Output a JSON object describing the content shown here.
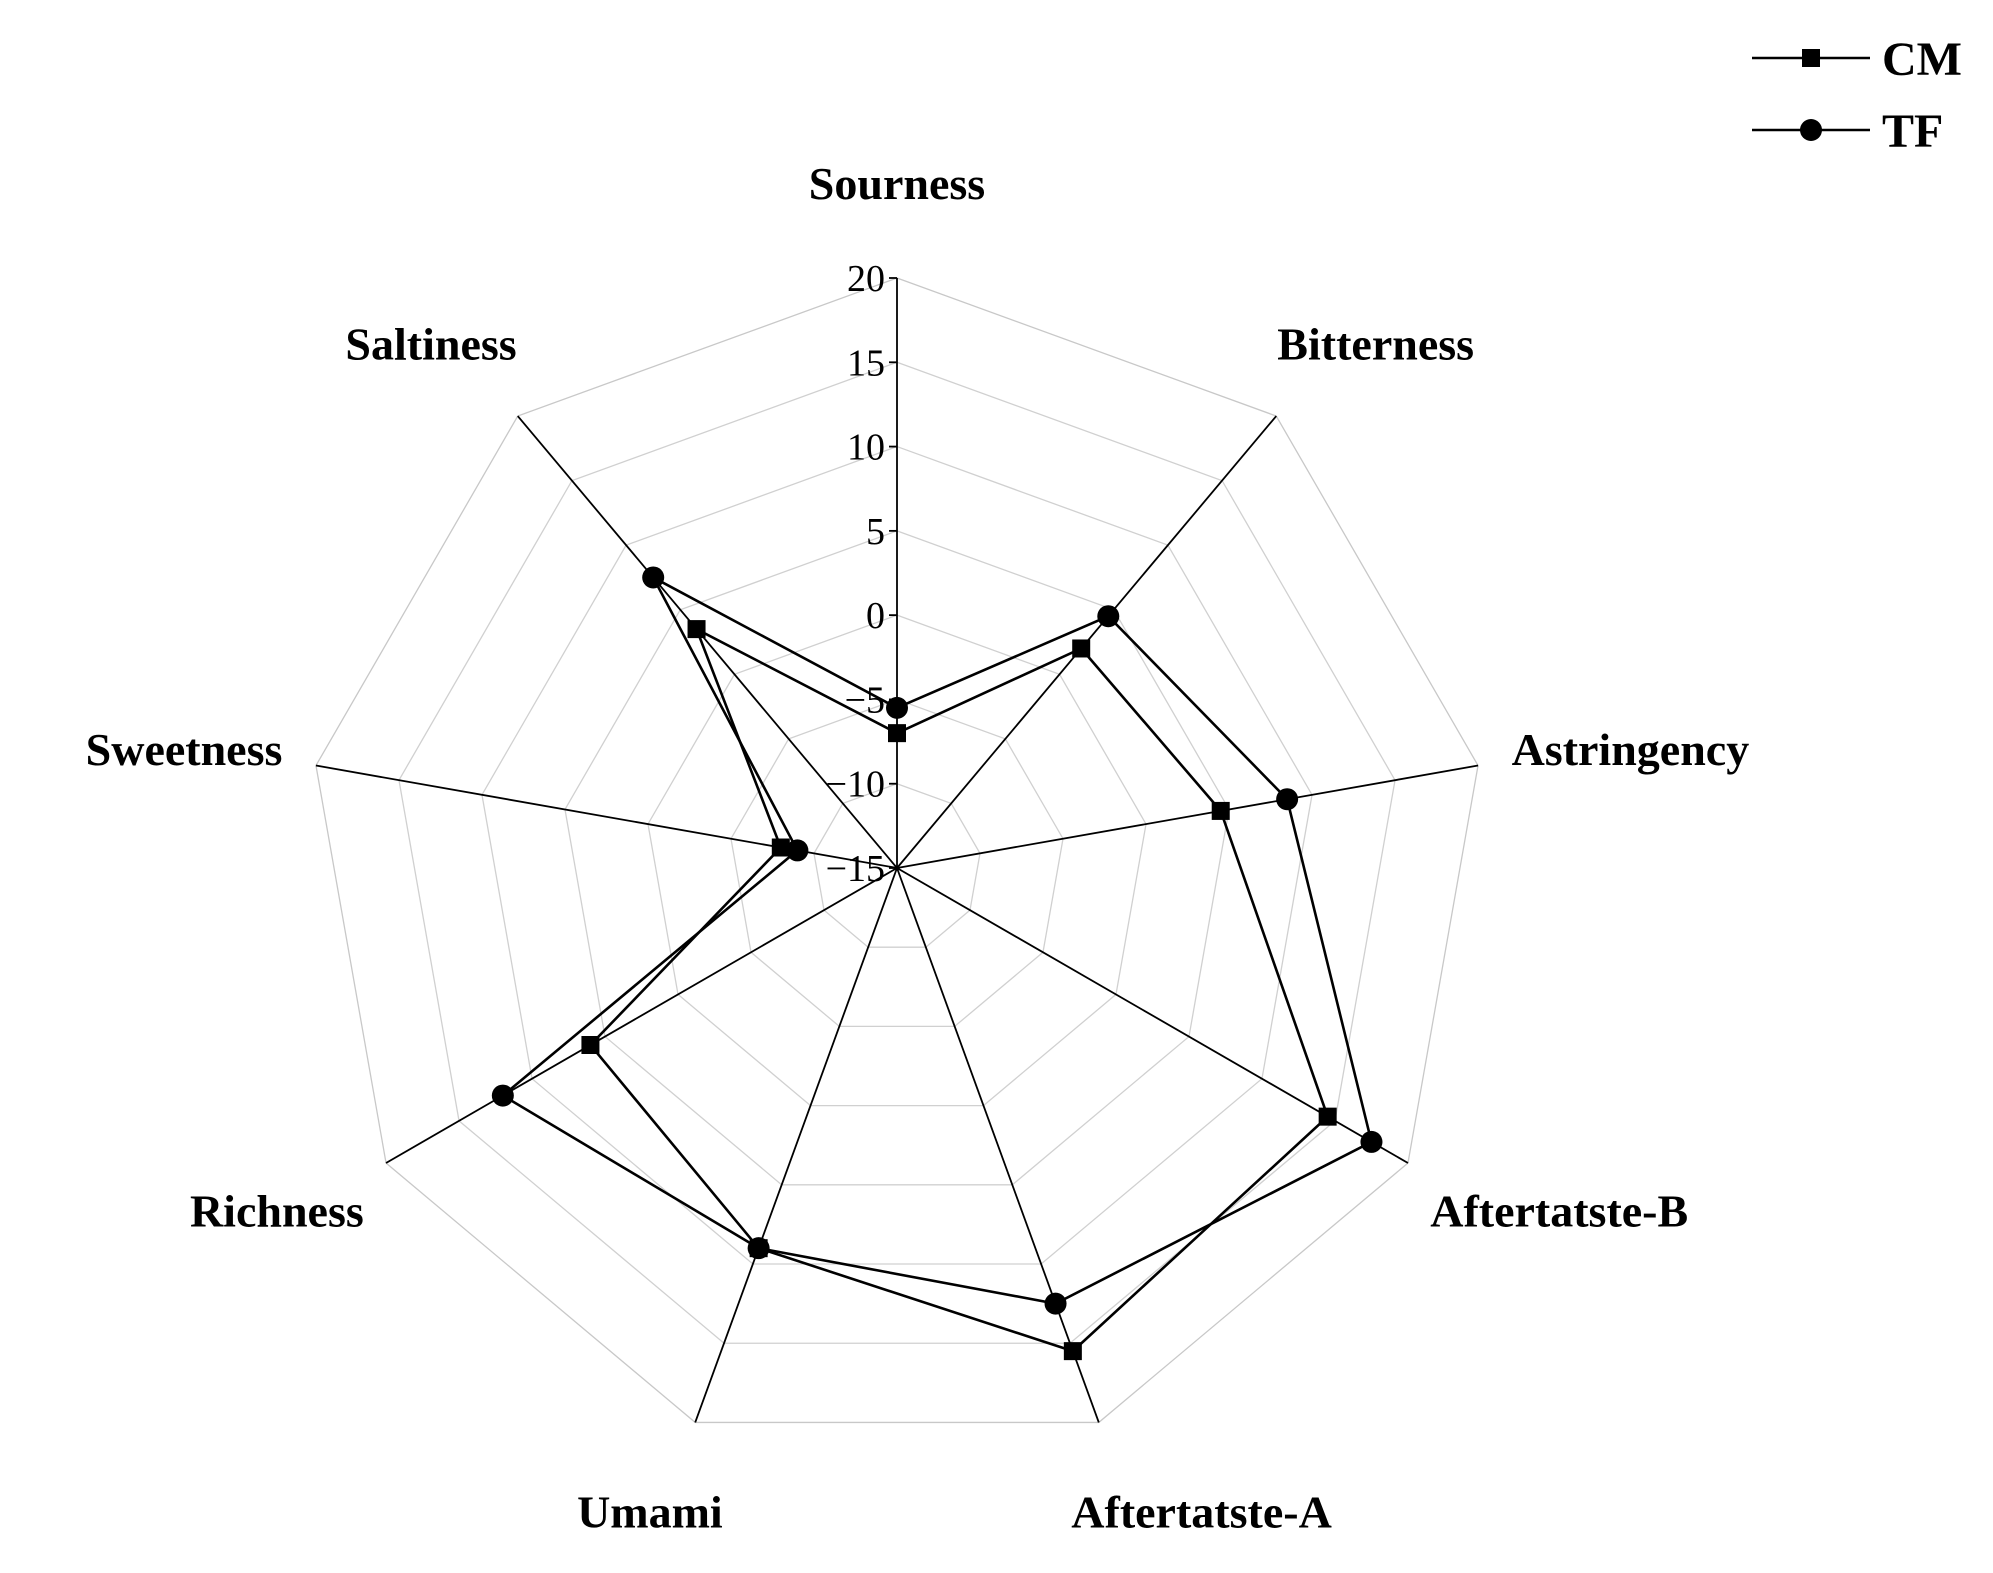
{
  "chart_data": {
    "type": "radar",
    "title": "",
    "categories": [
      "Sourness",
      "Bitterness",
      "Astringency",
      "Aftertatste-B",
      "Aftertatste-A",
      "Umami",
      "Richness",
      "Sweetness",
      "Saltiness"
    ],
    "rlim": [
      -15,
      20
    ],
    "ticks": [
      20,
      15,
      10,
      5,
      0,
      -5,
      -10,
      -15
    ],
    "tick_labels": [
      "20",
      "15",
      "10",
      "5",
      "0",
      "−5",
      "−10",
      "−15"
    ],
    "grid": true,
    "legend_position": "top-right",
    "series": [
      {
        "name": "CM",
        "marker": "square",
        "values": [
          -7.0,
          2.0,
          4.5,
          14.5,
          15.5,
          9.0,
          6.0,
          -8.0,
          3.5
        ]
      },
      {
        "name": "TF",
        "marker": "circle",
        "values": [
          -5.5,
          4.5,
          8.5,
          17.5,
          12.5,
          9.0,
          12.0,
          -9.0,
          7.5
        ]
      }
    ]
  }
}
